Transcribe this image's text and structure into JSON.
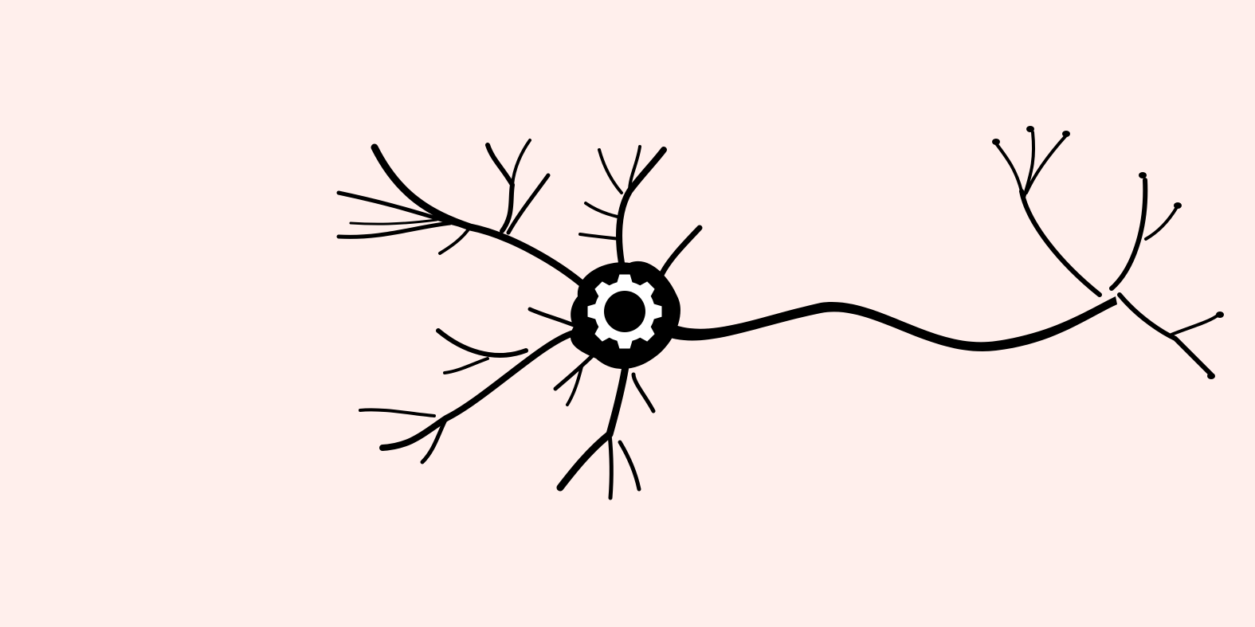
{
  "colors": {
    "background": "#ffefec",
    "neuron": "#000000",
    "gear": "#ffffff"
  },
  "icons": {
    "neuron": "neuron-icon",
    "gear": "gear-icon"
  }
}
